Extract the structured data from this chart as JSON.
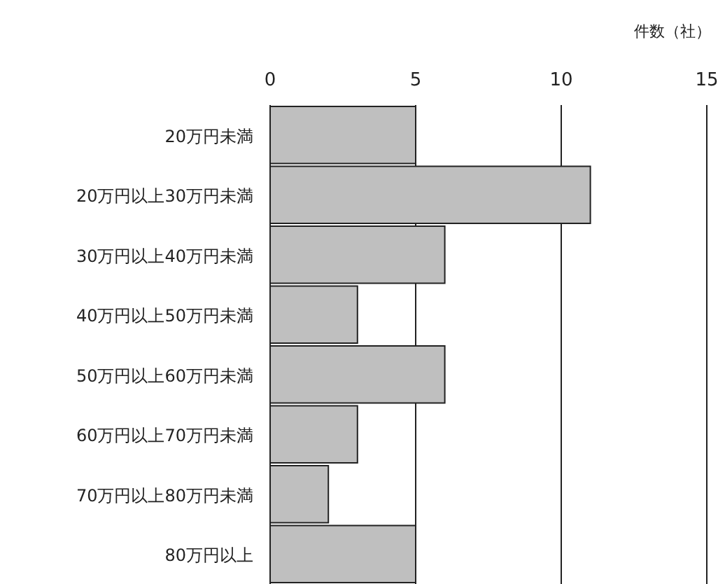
{
  "chart_data": {
    "type": "bar",
    "orientation": "horizontal",
    "xlabel": "件数（社）",
    "categories": [
      "20万円未満",
      "20万円以上30万円未満",
      "30万円以上40万円未満",
      "40万円以上50万円未満",
      "50万円以上60万円未満",
      "60万円以上70万円未満",
      "70万円以上80万円未満",
      "80万円以上"
    ],
    "values": [
      5,
      11,
      6,
      3,
      6,
      3,
      2,
      5
    ],
    "color": "#bfbfbf",
    "xlim": [
      0,
      15
    ],
    "xticks": [
      0,
      5,
      10,
      15
    ],
    "grid": "x"
  }
}
